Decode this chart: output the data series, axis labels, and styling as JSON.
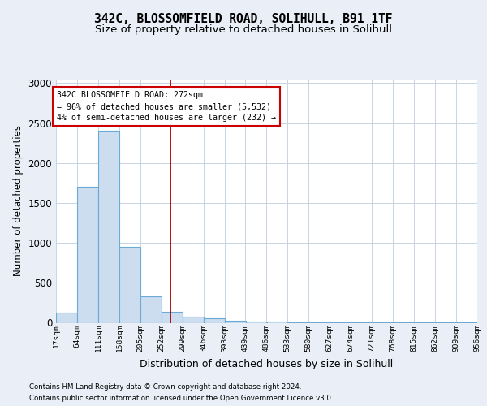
{
  "title": "342C, BLOSSOMFIELD ROAD, SOLIHULL, B91 1TF",
  "subtitle": "Size of property relative to detached houses in Solihull",
  "xlabel": "Distribution of detached houses by size in Solihull",
  "ylabel": "Number of detached properties",
  "footer_line1": "Contains HM Land Registry data © Crown copyright and database right 2024.",
  "footer_line2": "Contains public sector information licensed under the Open Government Licence v3.0.",
  "bar_color": "#ccddf0",
  "bar_edge_color": "#6aaad4",
  "grid_color": "#c8d4e3",
  "vline_color": "#aa0000",
  "vline_x": 272,
  "annotation_text": "342C BLOSSOMFIELD ROAD: 272sqm\n← 96% of detached houses are smaller (5,532)\n4% of semi-detached houses are larger (232) →",
  "annotation_box_edge": "#cc0000",
  "annotation_bg": "white",
  "bins": [
    17,
    64,
    111,
    158,
    205,
    252,
    299,
    346,
    393,
    439,
    486,
    533,
    580,
    627,
    674,
    721,
    768,
    815,
    862,
    909,
    956
  ],
  "bin_labels": [
    "17sqm",
    "64sqm",
    "111sqm",
    "158sqm",
    "205sqm",
    "252sqm",
    "299sqm",
    "346sqm",
    "393sqm",
    "439sqm",
    "486sqm",
    "533sqm",
    "580sqm",
    "627sqm",
    "674sqm",
    "721sqm",
    "768sqm",
    "815sqm",
    "862sqm",
    "909sqm",
    "956sqm"
  ],
  "counts": [
    130,
    1700,
    2400,
    950,
    330,
    140,
    80,
    55,
    30,
    18,
    12,
    8,
    5,
    4,
    3,
    2,
    2,
    1,
    1,
    1
  ],
  "ylim": [
    0,
    3050
  ],
  "yticks": [
    0,
    500,
    1000,
    1500,
    2000,
    2500,
    3000
  ],
  "background_color": "#eaeff7",
  "plot_bg_color": "white",
  "title_fontsize": 10.5,
  "subtitle_fontsize": 9.5
}
